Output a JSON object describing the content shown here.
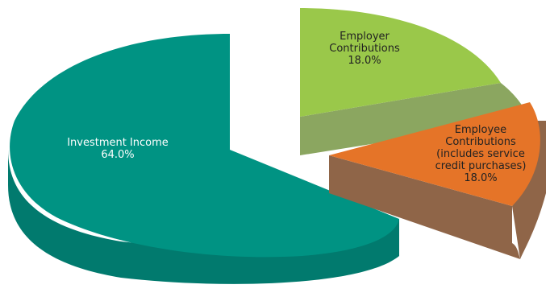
{
  "chart_data": {
    "type": "pie",
    "style": "3d-exploded",
    "slices": [
      {
        "label_lines": [
          "Investment Income",
          "64.0%"
        ],
        "value": 64.0,
        "color_top": "#009383",
        "color_side": "#017A6E",
        "label_color": "#FFFFFF"
      },
      {
        "label_lines": [
          "Employer",
          "Contributions",
          "18.0%"
        ],
        "value": 18.0,
        "color_top": "#9AC84A",
        "color_side": "#8BA660",
        "label_color": "#222222"
      },
      {
        "label_lines": [
          "Employee",
          "Contributions",
          "(includes service",
          "credit purchases)",
          "18.0%"
        ],
        "value": 18.0,
        "color_top": "#E57428",
        "color_side": "#8F6548",
        "label_color": "#222222"
      }
    ]
  }
}
